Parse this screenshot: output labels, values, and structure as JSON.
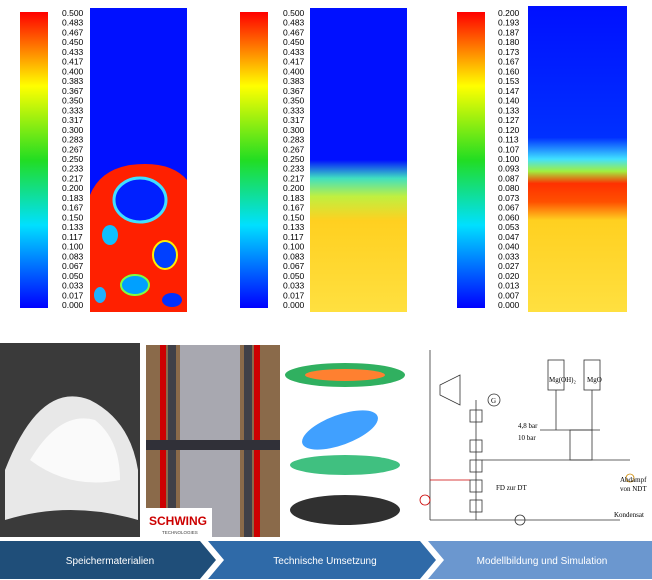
{
  "colorbars": [
    {
      "labels": [
        "0.500",
        "0.483",
        "0.467",
        "0.450",
        "0.433",
        "0.417",
        "0.400",
        "0.383",
        "0.367",
        "0.350",
        "0.333",
        "0.317",
        "0.300",
        "0.283",
        "0.267",
        "0.250",
        "0.233",
        "0.217",
        "0.200",
        "0.183",
        "0.167",
        "0.150",
        "0.133",
        "0.117",
        "0.100",
        "0.083",
        "0.067",
        "0.050",
        "0.033",
        "0.017",
        "0.000"
      ]
    },
    {
      "labels": [
        "0.500",
        "0.483",
        "0.467",
        "0.450",
        "0.433",
        "0.417",
        "0.400",
        "0.383",
        "0.367",
        "0.350",
        "0.333",
        "0.317",
        "0.300",
        "0.283",
        "0.267",
        "0.250",
        "0.233",
        "0.217",
        "0.200",
        "0.183",
        "0.167",
        "0.150",
        "0.133",
        "0.117",
        "0.100",
        "0.083",
        "0.067",
        "0.050",
        "0.033",
        "0.017",
        "0.000"
      ]
    },
    {
      "labels": [
        "0.200",
        "0.193",
        "0.187",
        "0.180",
        "0.173",
        "0.167",
        "0.160",
        "0.153",
        "0.147",
        "0.140",
        "0.133",
        "0.127",
        "0.120",
        "0.113",
        "0.107",
        "0.100",
        "0.093",
        "0.087",
        "0.080",
        "0.073",
        "0.067",
        "0.060",
        "0.053",
        "0.047",
        "0.040",
        "0.033",
        "0.027",
        "0.020",
        "0.013",
        "0.007",
        "0.000"
      ]
    }
  ],
  "logo": {
    "name": "SCHWING",
    "sub": "TECHNOLOGIES"
  },
  "diagram": {
    "mgoh": "Mg(OH)₂",
    "mgo": "MgO",
    "gen": "G",
    "p1": "4,8 bar",
    "p2": "10 bar",
    "fd": "FD zur DT",
    "abdampf1": "Abdampf",
    "abdampf2": "von NDT",
    "kondensat": "Kondensat"
  },
  "steps": [
    "Speichermaterialien",
    "Technische Umsetzung",
    "Modellbildung und Simulation"
  ]
}
